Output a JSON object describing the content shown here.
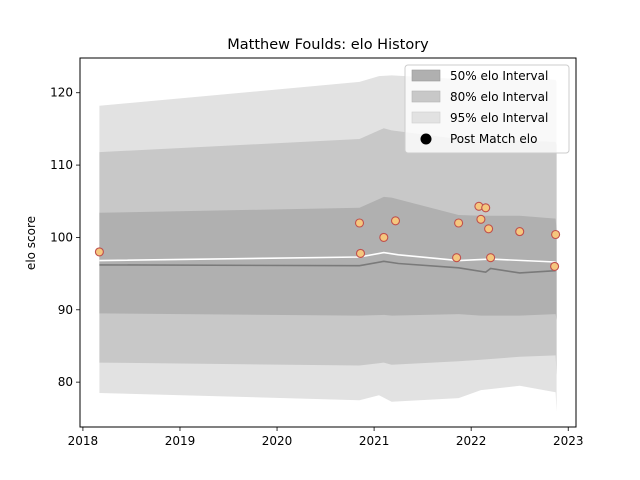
{
  "chart_data": {
    "type": "line",
    "title": "Matthew Foulds: elo History",
    "xlabel": "",
    "ylabel": "elo score",
    "xlim": [
      2017.97,
      2023.08
    ],
    "ylim": [
      73.8,
      124.8
    ],
    "x_ticks": [
      2018,
      2019,
      2020,
      2021,
      2022,
      2023
    ],
    "x_tick_labels": [
      "2018",
      "2019",
      "2020",
      "2021",
      "2022",
      "2023"
    ],
    "y_ticks": [
      80,
      90,
      100,
      110,
      120
    ],
    "y_tick_labels": [
      "80",
      "90",
      "100",
      "110",
      "120"
    ],
    "grid": false,
    "legend_position": "top-right",
    "legend": [
      "50% elo Interval",
      "80% elo Interval",
      "95% elo Interval",
      "Post Match elo"
    ],
    "colors": {
      "band50": "#b0b0b0",
      "band80": "#c8c8c8",
      "band95": "#e2e2e2",
      "median_line": "#7a7a7a",
      "mean_line": "#ffffff",
      "point_fill": "#f5c77e",
      "point_edge": "#c0504d"
    },
    "series": [
      {
        "name": "95% elo Interval",
        "x": [
          2018.17,
          2020.85,
          2021.05,
          2021.18,
          2021.87,
          2022.1,
          2022.17,
          2022.5,
          2022.87,
          2022.88
        ],
        "upper": [
          118.2,
          121.5,
          122.3,
          122.4,
          121.9,
          122.2,
          122.2,
          122.0,
          121.8,
          121.5
        ],
        "lower": [
          78.5,
          77.5,
          78.2,
          77.3,
          77.8,
          78.9,
          79.0,
          79.5,
          78.6,
          75.9
        ]
      },
      {
        "name": "80% elo Interval",
        "x": [
          2018.17,
          2020.85,
          2021.1,
          2021.18,
          2021.87,
          2022.1,
          2022.5,
          2022.87,
          2022.88
        ],
        "upper": [
          111.8,
          113.6,
          115.1,
          114.8,
          113.6,
          113.5,
          113.4,
          113.2,
          112.8
        ],
        "lower": [
          82.7,
          82.3,
          82.7,
          82.4,
          82.9,
          83.1,
          83.5,
          83.7,
          81.0
        ]
      },
      {
        "name": "50% elo Interval",
        "x": [
          2018.17,
          2020.85,
          2021.1,
          2021.18,
          2021.87,
          2022.1,
          2022.5,
          2022.87,
          2022.88
        ],
        "upper": [
          103.4,
          104.1,
          105.6,
          105.5,
          103.1,
          103.0,
          103.0,
          102.6,
          101.0
        ],
        "lower": [
          89.5,
          89.2,
          89.3,
          89.2,
          89.4,
          89.2,
          89.2,
          89.4,
          88.6
        ]
      },
      {
        "name": "median",
        "x": [
          2018.17,
          2020.85,
          2021.1,
          2021.25,
          2021.87,
          2022.15,
          2022.2,
          2022.5,
          2022.87
        ],
        "y": [
          96.2,
          96.1,
          96.7,
          96.4,
          95.8,
          95.2,
          95.7,
          95.1,
          95.4
        ]
      },
      {
        "name": "mean",
        "x": [
          2018.17,
          2020.85,
          2021.1,
          2021.25,
          2021.87,
          2022.2,
          2022.87
        ],
        "y": [
          96.8,
          97.3,
          97.9,
          97.6,
          96.8,
          97.0,
          96.6
        ]
      },
      {
        "name": "Post Match elo",
        "x": [
          2018.17,
          2020.85,
          2020.86,
          2021.1,
          2021.22,
          2021.85,
          2021.87,
          2022.08,
          2022.1,
          2022.15,
          2022.18,
          2022.2,
          2022.5,
          2022.86,
          2022.87
        ],
        "y": [
          98.0,
          102.0,
          97.8,
          100.0,
          102.3,
          97.2,
          102.0,
          104.3,
          102.5,
          104.1,
          101.2,
          97.2,
          100.8,
          96.0,
          100.4
        ]
      }
    ]
  }
}
